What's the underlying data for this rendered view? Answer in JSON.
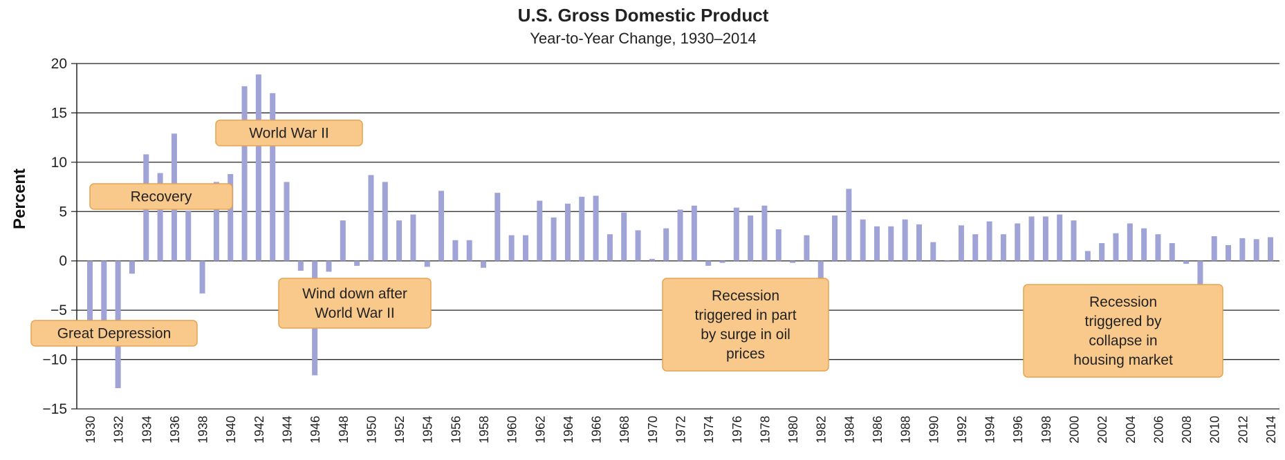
{
  "chart_data": {
    "type": "bar",
    "title": "U.S. Gross Domestic Product",
    "subtitle": "Year-to-Year Change, 1930–2014",
    "xlabel": "",
    "ylabel": "Percent",
    "ylim": [
      -15,
      20
    ],
    "yticks": [
      -15,
      -10,
      -5,
      0,
      5,
      10,
      15,
      20
    ],
    "grid": true,
    "bar_color": "#9fa3d6",
    "annotation_color": "#f8c98a",
    "x": [
      1930,
      1931,
      1932,
      1933,
      1934,
      1935,
      1936,
      1937,
      1938,
      1939,
      1940,
      1941,
      1942,
      1943,
      1944,
      1945,
      1946,
      1947,
      1948,
      1949,
      1950,
      1951,
      1952,
      1953,
      1954,
      1955,
      1956,
      1957,
      1958,
      1959,
      1960,
      1961,
      1962,
      1963,
      1964,
      1965,
      1966,
      1967,
      1968,
      1969,
      1970,
      1971,
      1972,
      1973,
      1974,
      1975,
      1976,
      1977,
      1978,
      1979,
      1980,
      1981,
      1982,
      1983,
      1984,
      1985,
      1986,
      1987,
      1988,
      1989,
      1990,
      1991,
      1992,
      1993,
      1994,
      1995,
      1996,
      1997,
      1998,
      1999,
      2000,
      2001,
      2002,
      2003,
      2004,
      2005,
      2006,
      2007,
      2008,
      2009,
      2010,
      2011,
      2012,
      2013,
      2014
    ],
    "values": [
      -8.5,
      -6.4,
      -12.9,
      -1.3,
      10.8,
      8.9,
      12.9,
      5.1,
      -3.3,
      8.0,
      8.8,
      17.7,
      18.9,
      17.0,
      8.0,
      -1.0,
      -11.6,
      -1.1,
      4.1,
      -0.5,
      8.7,
      8.0,
      4.1,
      4.7,
      -0.6,
      7.1,
      2.1,
      2.1,
      -0.7,
      6.9,
      2.6,
      2.6,
      6.1,
      4.4,
      5.8,
      6.5,
      6.6,
      2.7,
      4.9,
      3.1,
      0.2,
      3.3,
      5.2,
      5.6,
      -0.5,
      -0.2,
      5.4,
      4.6,
      5.6,
      3.2,
      -0.2,
      2.6,
      -1.9,
      4.6,
      7.3,
      4.2,
      3.5,
      3.5,
      4.2,
      3.7,
      1.9,
      -0.1,
      3.6,
      2.7,
      4.0,
      2.7,
      3.8,
      4.5,
      4.5,
      4.7,
      4.1,
      1.0,
      1.8,
      2.8,
      3.8,
      3.3,
      2.7,
      1.8,
      -0.3,
      -2.8,
      2.5,
      1.6,
      2.3,
      2.2,
      2.4
    ],
    "xtick_labels": [
      "1930",
      "1932",
      "1934",
      "1936",
      "1938",
      "1940",
      "1942",
      "1944",
      "1946",
      "1948",
      "1950",
      "1952",
      "1954",
      "1956",
      "1958",
      "1960",
      "1962",
      "1964",
      "1966",
      "1968",
      "1970",
      "1972",
      "1974",
      "1976",
      "1978",
      "1980",
      "1982",
      "1984",
      "1986",
      "1988",
      "1990",
      "1992",
      "1994",
      "1996",
      "1998",
      "2000",
      "2002",
      "2004",
      "2006",
      "2008",
      "2010",
      "2012",
      "2014"
    ],
    "annotations": [
      {
        "lines": [
          "Great Depression"
        ]
      },
      {
        "lines": [
          "Recovery"
        ]
      },
      {
        "lines": [
          "World War II"
        ]
      },
      {
        "lines": [
          "Wind down after",
          "World War II"
        ]
      },
      {
        "lines": [
          "Recession",
          "triggered in part",
          "by surge in oil",
          "prices"
        ]
      },
      {
        "lines": [
          "Recession",
          "triggered by",
          "collapse in",
          "housing market"
        ]
      }
    ]
  }
}
